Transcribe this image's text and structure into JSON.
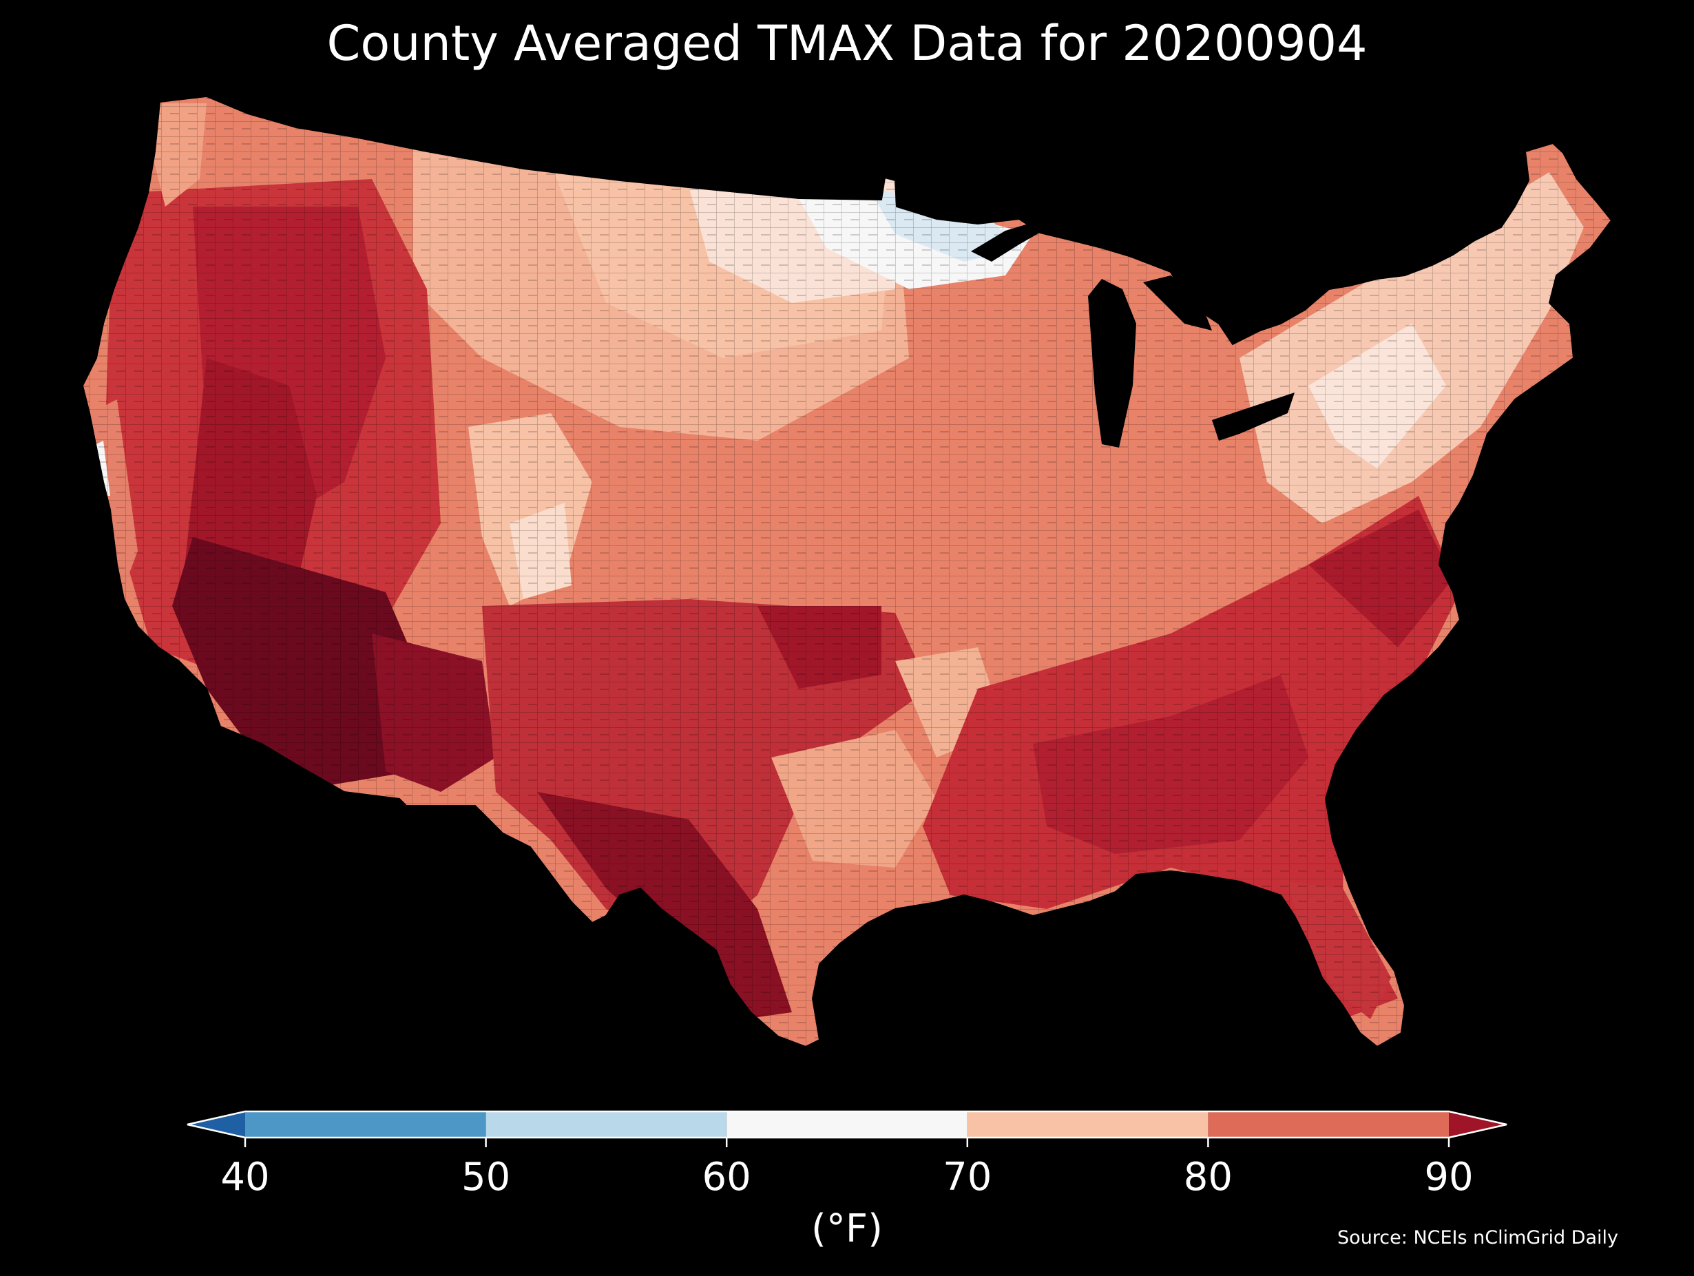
{
  "title": "County Averaged TMAX Data for 20200904",
  "source": "Source: NCEIs nClimGrid Daily",
  "units": "(°F)",
  "colorbar": {
    "ticks": [
      "40",
      "50",
      "60",
      "70",
      "80",
      "90"
    ],
    "colors": [
      "#2166ac",
      "#4393c3",
      "#92c5de",
      "#f7f7f7",
      "#f4a582",
      "#d6604d",
      "#b2182b",
      "#67001f"
    ],
    "bins": [
      {
        "from": 40,
        "to": 50,
        "color": "#4d97c7"
      },
      {
        "from": 50,
        "to": 60,
        "color": "#b9d9ea"
      },
      {
        "from": 60,
        "to": 70,
        "color": "#f7f7f7"
      },
      {
        "from": 70,
        "to": 80,
        "color": "#f7c2a6"
      },
      {
        "from": 80,
        "to": 90,
        "color": "#dd6b58"
      }
    ],
    "under_color": "#1f5fa4",
    "over_color": "#a01428"
  },
  "map_colors": {
    "cold": "#dbe9f3",
    "cool": "#f7f7f7",
    "mild": "#f7c2a6",
    "warm": "#e8836a",
    "hot": "#c9353a",
    "very_hot": "#a11628",
    "extreme": "#6b0a1e"
  }
}
